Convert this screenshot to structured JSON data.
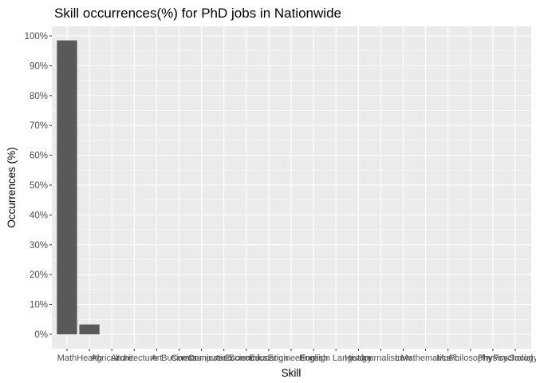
{
  "chart_data": {
    "type": "bar",
    "title": "Skill occurrences(%) for PhD jobs in Nationwide",
    "xlabel": "Skill",
    "ylabel": "Occurrences (%)",
    "ylim": [
      0,
      100
    ],
    "yticks": [
      "0%",
      "10%",
      "20%",
      "30%",
      "40%",
      "50%",
      "60%",
      "70%",
      "80%",
      "90%",
      "100%"
    ],
    "categories": [
      "Math",
      "Health",
      "Agriculture",
      "Architecture",
      "Art",
      "Business",
      "Communication",
      "Computer Science",
      "Economics",
      "Education",
      "Engineering",
      "English",
      "Foreign Language",
      "History",
      "Journalism",
      "Law",
      "Mathematics",
      "Music",
      "Philosophy",
      "Physics",
      "Psychology",
      "Social Science",
      "Sociology",
      "Statistics"
    ],
    "values": [
      98.5,
      3.3,
      0,
      0,
      0,
      0,
      0,
      0,
      0,
      0,
      0,
      0,
      0,
      0,
      0,
      0,
      0,
      0,
      0,
      0,
      0,
      0,
      0,
      0
    ],
    "colors": {
      "panel": "#ebebeb",
      "grid": "#ffffff",
      "bar": "#595959"
    },
    "grid": true,
    "legend": "none"
  }
}
